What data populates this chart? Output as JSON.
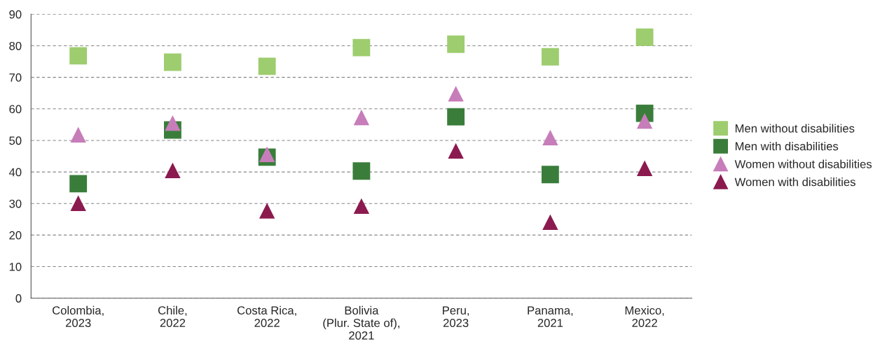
{
  "chart_data": {
    "type": "scatter",
    "categories": [
      "Colombia,\n2023",
      "Chile,\n2022",
      "Costa Rica,\n2022",
      "Bolivia\n(Plur. State of),\n2021",
      "Peru,\n2023",
      "Panama,\n2021",
      "Mexico,\n2022"
    ],
    "series": [
      {
        "name": "Men without disabilities",
        "color": "#9dcd6e",
        "marker": "square",
        "values": [
          76.8,
          74.8,
          73.5,
          79.4,
          80.5,
          76.5,
          82.7
        ]
      },
      {
        "name": "Men with disabilities",
        "color": "#3a7d3b",
        "marker": "square",
        "values": [
          36.3,
          53.3,
          44.7,
          40.3,
          57.5,
          39.2,
          58.6
        ]
      },
      {
        "name": "Women without disabilities",
        "color": "#c77dba",
        "marker": "triangle",
        "values": [
          51.8,
          55.5,
          45.6,
          57.3,
          64.8,
          50.9,
          56.2
        ]
      },
      {
        "name": "Women with disabilities",
        "color": "#8b1a4f",
        "marker": "triangle",
        "values": [
          30.1,
          40.5,
          27.7,
          29.2,
          46.7,
          24.1,
          41.2
        ]
      }
    ],
    "ylim": [
      0,
      90
    ],
    "yticks": [
      0,
      10,
      20,
      30,
      40,
      50,
      60,
      70,
      80,
      90
    ],
    "grid": "y",
    "legend": "right"
  }
}
